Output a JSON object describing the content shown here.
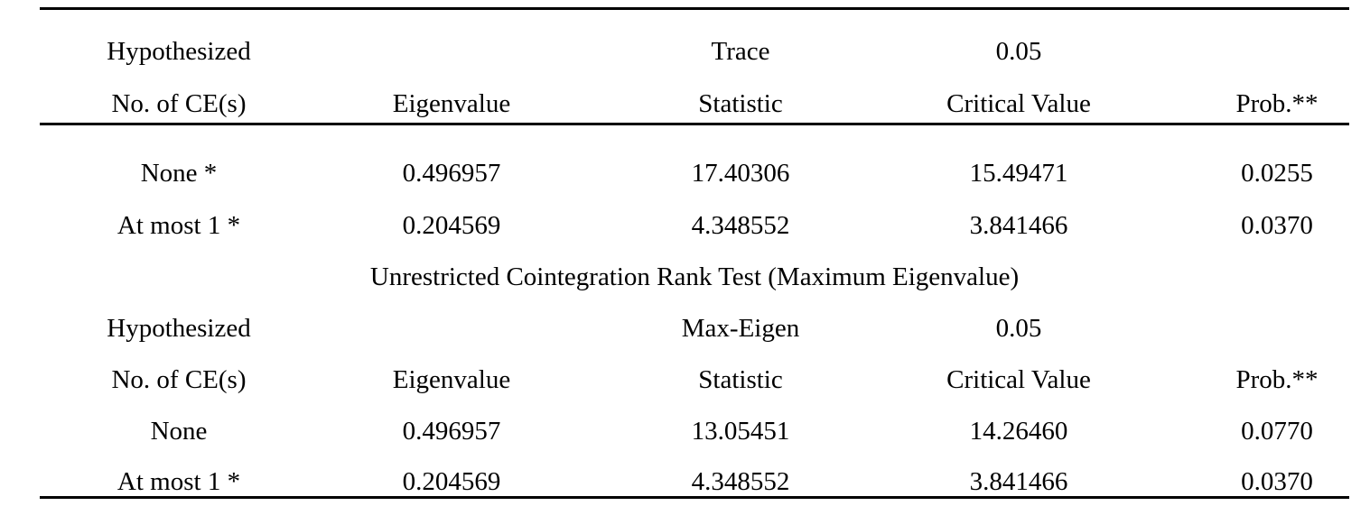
{
  "colors": {
    "background": "#ffffff",
    "text": "#000000",
    "rule": "#000000"
  },
  "trace": {
    "header": {
      "hypothesized": "Hypothesized",
      "no_of_ces": "No. of CE(s)",
      "eigenvalue": "Eigenvalue",
      "stat_line1": "Trace",
      "stat_line2": "Statistic",
      "cv_line1": "0.05",
      "cv_line2": "Critical Value",
      "prob": "Prob.**"
    },
    "rows": [
      {
        "hypothesized": "None *",
        "eigenvalue": "0.496957",
        "statistic": "17.40306",
        "critical_value": "15.49471",
        "prob": "0.0255"
      },
      {
        "hypothesized": "At most 1 *",
        "eigenvalue": "0.204569",
        "statistic": "4.348552",
        "critical_value": "3.841466",
        "prob": "0.0370"
      }
    ]
  },
  "maxeigen": {
    "title": "Unrestricted Cointegration Rank Test (Maximum Eigenvalue)",
    "header": {
      "hypothesized": "Hypothesized",
      "no_of_ces": "No. of CE(s)",
      "eigenvalue": "Eigenvalue",
      "stat_line1": "Max-Eigen",
      "stat_line2": "Statistic",
      "cv_line1": "0.05",
      "cv_line2": "Critical Value",
      "prob": "Prob.**"
    },
    "rows": [
      {
        "hypothesized": "None",
        "eigenvalue": "0.496957",
        "statistic": "13.05451",
        "critical_value": "14.26460",
        "prob": "0.0770"
      },
      {
        "hypothesized": "At most 1 *",
        "eigenvalue": "0.204569",
        "statistic": "4.348552",
        "critical_value": "3.841466",
        "prob": "0.0370"
      }
    ]
  }
}
